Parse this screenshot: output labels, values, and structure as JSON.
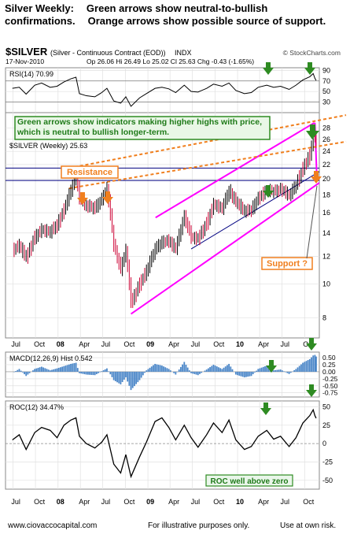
{
  "header": {
    "line1_a": "Silver Weekly:",
    "line1_b": "Green arrows show neutral-to-bullish",
    "line2_a": "confirmations.",
    "line2_b": "Orange arrows show possible source of support."
  },
  "chart_info": {
    "symbol": "$SILVER",
    "name": "(Silver - Continuous Contract (EOD))",
    "exchange": "INDX",
    "date": "17-Nov-2010",
    "ohlc": "Op 26.06  Hi 26.49  Lo 25.02  Cl 25.63  Chg -0.43 (-1.65%)",
    "copyright": "© StockCharts.com"
  },
  "annotations": {
    "green_note": "Green arrows show indicators making higher highs with price, which is neutral to bullish longer-term.",
    "resistance": "Resistance",
    "support": "Support ?",
    "roc_note": "ROC well above zero"
  },
  "footer": {
    "site": "www.ciovaccocapital.com",
    "purpose": "For illustrative purposes only.",
    "risk": "Use at own risk."
  },
  "colors": {
    "price_up": "#000000",
    "price_down": "#cc0033",
    "green_arrow": "#2e8b22",
    "orange_arrow": "#f07f1e",
    "channel": "#ff00ff",
    "resistance_line": "#f07f1e",
    "horizontal": "#000080",
    "macd_hist": "#4a86c8"
  },
  "chart_data": {
    "type": "line",
    "x_ticks": [
      "Jul",
      "Oct",
      "08",
      "Apr",
      "Jul",
      "Oct",
      "09",
      "Apr",
      "Jul",
      "Oct",
      "10",
      "Apr",
      "Jul",
      "Oct"
    ],
    "price": {
      "label": "$SILVER (Weekly) 25.63",
      "y_ticks": [
        8,
        10,
        12,
        14,
        16,
        18,
        20,
        22,
        24,
        26,
        28
      ],
      "ylim": [
        7,
        31
      ],
      "scale": "log",
      "points": [
        [
          "2007-06-29",
          12.5
        ],
        [
          "2007-07-27",
          12.9
        ],
        [
          "2007-08-24",
          11.9
        ],
        [
          "2007-09-28",
          13.6
        ],
        [
          "2007-10-26",
          14.3
        ],
        [
          "2007-11-30",
          14.1
        ],
        [
          "2007-12-28",
          14.8
        ],
        [
          "2008-01-25",
          16.3
        ],
        [
          "2008-02-22",
          18.6
        ],
        [
          "2008-03-14",
          20.5
        ],
        [
          "2008-03-28",
          17.7
        ],
        [
          "2008-04-25",
          16.8
        ],
        [
          "2008-05-30",
          16.5
        ],
        [
          "2008-06-27",
          17.5
        ],
        [
          "2008-07-18",
          18.8
        ],
        [
          "2008-08-15",
          12.9
        ],
        [
          "2008-09-12",
          11.0
        ],
        [
          "2008-10-03",
          12.5
        ],
        [
          "2008-10-24",
          8.8
        ],
        [
          "2008-11-28",
          10.0
        ],
        [
          "2008-12-26",
          10.9
        ],
        [
          "2009-01-30",
          12.6
        ],
        [
          "2009-02-27",
          13.2
        ],
        [
          "2009-03-27",
          13.3
        ],
        [
          "2009-04-24",
          12.6
        ],
        [
          "2009-05-29",
          15.6
        ],
        [
          "2009-06-26",
          13.6
        ],
        [
          "2009-07-24",
          13.5
        ],
        [
          "2009-08-28",
          14.9
        ],
        [
          "2009-09-25",
          16.9
        ],
        [
          "2009-10-30",
          16.5
        ],
        [
          "2009-11-27",
          18.5
        ],
        [
          "2009-12-25",
          17.2
        ],
        [
          "2010-01-29",
          16.2
        ],
        [
          "2010-02-26",
          16.3
        ],
        [
          "2010-03-26",
          17.6
        ],
        [
          "2010-04-30",
          18.6
        ],
        [
          "2010-05-28",
          18.4
        ],
        [
          "2010-06-25",
          18.7
        ],
        [
          "2010-07-30",
          18.0
        ],
        [
          "2010-08-27",
          19.2
        ],
        [
          "2010-09-24",
          21.5
        ],
        [
          "2010-10-22",
          23.4
        ],
        [
          "2010-11-05",
          26.9
        ],
        [
          "2010-11-12",
          26.4
        ],
        [
          "2010-11-17",
          25.63
        ]
      ]
    },
    "rsi": {
      "label": "RSI(14) 70.99",
      "y_ticks": [
        30,
        50,
        70,
        90
      ],
      "ylim": [
        10,
        95
      ],
      "values": [
        56,
        58,
        45,
        62,
        66,
        58,
        60,
        68,
        74,
        77,
        46,
        42,
        40,
        48,
        56,
        32,
        28,
        40,
        22,
        38,
        46,
        56,
        58,
        55,
        48,
        62,
        50,
        49,
        56,
        64,
        60,
        66,
        52,
        46,
        48,
        58,
        62,
        58,
        60,
        54,
        62,
        72,
        78,
        84,
        75,
        71
      ]
    },
    "macd": {
      "label": "MACD(12,26,9) Hist 0.542",
      "y_ticks": [
        -0.75,
        -0.5,
        -0.25,
        0.0,
        0.25,
        0.5
      ],
      "ylim": [
        -0.9,
        0.7
      ],
      "values": [
        -0.05,
        0.1,
        -0.15,
        0.1,
        0.18,
        0.05,
        0.12,
        0.2,
        0.28,
        0.32,
        -0.05,
        -0.1,
        -0.12,
        0.02,
        0.12,
        -0.3,
        -0.45,
        -0.2,
        -0.65,
        -0.3,
        0.05,
        0.28,
        0.22,
        0.1,
        -0.1,
        0.35,
        -0.05,
        -0.12,
        0.08,
        0.25,
        0.1,
        0.28,
        -0.1,
        -0.2,
        -0.15,
        0.1,
        0.22,
        0.05,
        0.08,
        -0.08,
        0.1,
        0.32,
        0.45,
        0.58,
        0.6,
        0.542
      ]
    },
    "roc": {
      "label": "ROC(12) 34.47%",
      "y_ticks": [
        -50,
        -25,
        0,
        25,
        50
      ],
      "ylim": [
        -62,
        58
      ],
      "values": [
        5,
        12,
        -8,
        15,
        22,
        18,
        8,
        25,
        32,
        35,
        10,
        0,
        -6,
        2,
        12,
        -28,
        -40,
        -15,
        -45,
        -18,
        2,
        30,
        35,
        22,
        5,
        25,
        8,
        -5,
        12,
        28,
        15,
        32,
        5,
        -8,
        -4,
        10,
        18,
        6,
        10,
        -4,
        8,
        28,
        38,
        46,
        38,
        34.47
      ]
    }
  }
}
